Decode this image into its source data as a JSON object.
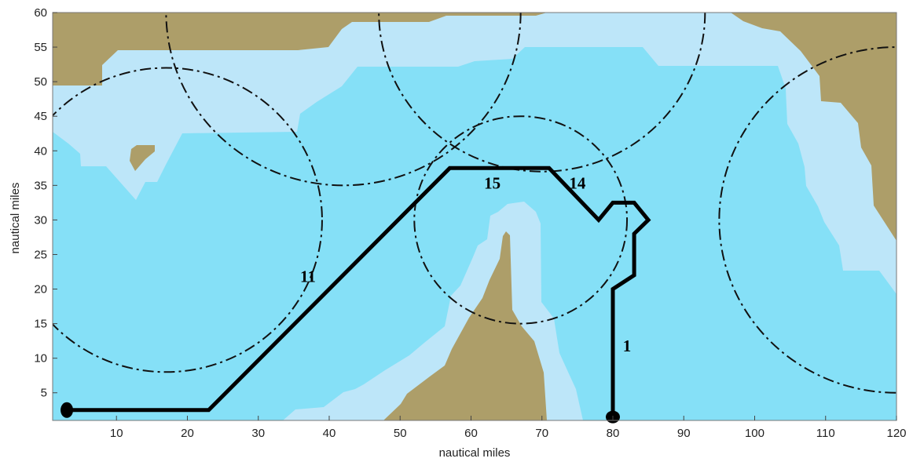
{
  "map": {
    "xlabel": "nautical miles",
    "ylabel": "nautical miles",
    "xlim": [
      1,
      120
    ],
    "ylim": [
      1,
      60
    ],
    "x_ticks": [
      10,
      20,
      30,
      40,
      50,
      60,
      70,
      80,
      90,
      100,
      110,
      120
    ],
    "y_ticks": [
      5,
      10,
      15,
      20,
      25,
      30,
      35,
      40,
      45,
      50,
      55,
      60
    ],
    "colors": {
      "land": "#ad9e69",
      "shallow_water": "#bde6f9",
      "deep_water": "#85e0f7",
      "route": "#000000",
      "range_circles": "#111111"
    },
    "range_circles": [
      {
        "center": [
          17,
          30
        ],
        "radius": 22
      },
      {
        "center": [
          42,
          60
        ],
        "radius": 25
      },
      {
        "center": [
          70,
          60
        ],
        "radius": 23
      },
      {
        "center": [
          67,
          30
        ],
        "radius": 15
      },
      {
        "center": [
          120,
          30
        ],
        "radius": 25
      }
    ],
    "route": {
      "start": [
        3,
        2.5
      ],
      "end": [
        80,
        1.5
      ],
      "path": [
        [
          3,
          2.5
        ],
        [
          23,
          2.5
        ],
        [
          57,
          37.5
        ],
        [
          71,
          37.5
        ],
        [
          78,
          30
        ],
        [
          80,
          32.5
        ],
        [
          83,
          32.5
        ],
        [
          85,
          30
        ],
        [
          83,
          28
        ],
        [
          83,
          22
        ],
        [
          80,
          20
        ],
        [
          80,
          1.5
        ]
      ],
      "segment_labels": [
        {
          "text": "11",
          "at": [
            37,
            21
          ]
        },
        {
          "text": "15",
          "at": [
            63,
            34.5
          ]
        },
        {
          "text": "14",
          "at": [
            75,
            34.5
          ]
        },
        {
          "text": "1",
          "at": [
            82,
            11
          ]
        }
      ]
    }
  }
}
